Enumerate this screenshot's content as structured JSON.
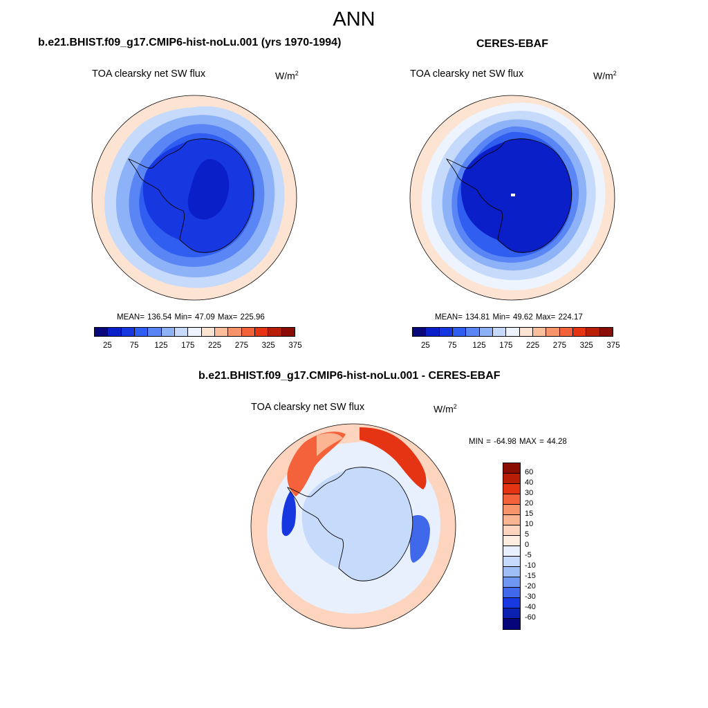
{
  "figure": {
    "title": "ANN"
  },
  "panels": [
    {
      "title": "b.e21.BHIST.f09_g17.CMIP6-hist-noLu.001 (yrs 1970-1994)",
      "variable": "TOA clearsky net SW flux",
      "units_base": "W/m",
      "units_exp": "2",
      "stats": "MEAN= 136.54  Min=  47.09  Max= 225.96"
    },
    {
      "title": "CERES-EBAF",
      "variable": "TOA clearsky net SW flux",
      "units_base": "W/m",
      "units_exp": "2",
      "stats": "MEAN= 134.81  Min=  49.62  Max= 224.17"
    },
    {
      "title": "b.e21.BHIST.f09_g17.CMIP6-hist-noLu.001 - CERES-EBAF",
      "variable": "TOA clearsky net SW flux",
      "units_base": "W/m",
      "units_exp": "2",
      "stats": "MIN = -64.98 MAX =  44.28"
    }
  ],
  "colorbar_abs": {
    "ticks": [
      "25",
      "75",
      "125",
      "175",
      "225",
      "275",
      "325",
      "375"
    ],
    "colors": [
      "#08087a",
      "#0a1fc8",
      "#1738e0",
      "#2f5ef0",
      "#5a86f5",
      "#8eb2f8",
      "#c6dafb",
      "#eef4fd",
      "#fde3d2",
      "#fbbf9c",
      "#f8946a",
      "#f4623c",
      "#e53414",
      "#b81e06",
      "#8a0d02"
    ]
  },
  "colorbar_diff": {
    "ticks": [
      "60",
      "40",
      "30",
      "20",
      "15",
      "10",
      "5",
      "0",
      "-5",
      "-10",
      "-15",
      "-20",
      "-30",
      "-40",
      "-60"
    ],
    "colors": [
      "#8a0d02",
      "#b81e06",
      "#e53414",
      "#f4623c",
      "#f8946a",
      "#fbb592",
      "#fdd5bf",
      "#fdece0",
      "#e8f0fd",
      "#c6dafb",
      "#9fbef8",
      "#6f97f2",
      "#3f68ea",
      "#1738e0",
      "#0a20b0",
      "#06067a"
    ]
  }
}
